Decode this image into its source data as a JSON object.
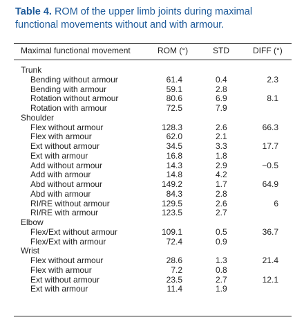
{
  "caption": {
    "label": "Table 4.",
    "text": "ROM of the upper limb joints during maximal functional movements without and with armour."
  },
  "table": {
    "header": [
      "Maximal functional movement",
      "ROM (°)",
      "STD",
      "DIFF (°)"
    ],
    "groups": [
      {
        "name": "Trunk",
        "rows": [
          [
            "Bending without armour",
            "61.4",
            "0.4",
            "2.3"
          ],
          [
            "Bending with armour",
            "59.1",
            "2.8"
          ],
          [
            "Rotation without armour",
            "80.6",
            "6.9",
            "8.1"
          ],
          [
            "Rotation with armour",
            "72.5",
            "7.9"
          ]
        ]
      },
      {
        "name": "Shoulder",
        "rows": [
          [
            "Flex without armour",
            "128.3",
            "2.6",
            "66.3"
          ],
          [
            "Flex with armour",
            "62.0",
            "2.1"
          ],
          [
            "Ext without armour",
            "34.5",
            "3.3",
            "17.7"
          ],
          [
            "Ext with armour",
            "16.8",
            "1.8"
          ],
          [
            "Add without armour",
            "14.3",
            "2.9",
            "−0.5"
          ],
          [
            "Add with armour",
            "14.8",
            "4.2"
          ],
          [
            "Abd without armour",
            "149.2",
            "1.7",
            "64.9"
          ],
          [
            "Abd with armour",
            "84.3",
            "2.8"
          ],
          [
            "RI/RE without armour",
            "129.5",
            "2.6",
            "6"
          ],
          [
            "RI/RE with armour",
            "123.5",
            "2.7"
          ]
        ]
      },
      {
        "name": "Elbow",
        "rows": [
          [
            "Flex/Ext without armour",
            "109.1",
            "0.5",
            "36.7"
          ],
          [
            "Flex/Ext with armour",
            "72.4",
            "0.9"
          ]
        ]
      },
      {
        "name": "Wrist",
        "rows": [
          [
            "Flex without armour",
            "28.6",
            "1.3",
            "21.4"
          ],
          [
            "Flex with armour",
            "7.2",
            "0.8"
          ],
          [
            "Ext without armour",
            "23.5",
            "2.7",
            "12.1"
          ],
          [
            "Ext with armour",
            "11.4",
            "1.9"
          ]
        ]
      }
    ]
  }
}
